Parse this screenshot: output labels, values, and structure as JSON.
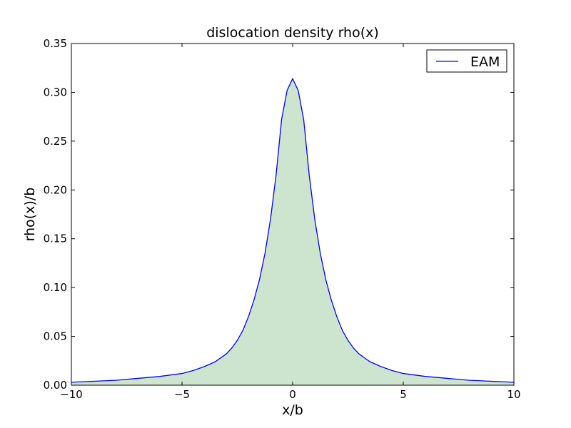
{
  "chart_data": {
    "type": "area",
    "title": "dislocation density rho(x)",
    "xlabel": "x/b",
    "ylabel": "rho(x)/b",
    "xlim": [
      -10,
      10
    ],
    "ylim": [
      0,
      0.35
    ],
    "xticks": [
      -10,
      -5,
      0,
      5,
      10
    ],
    "xtick_labels": [
      "−10",
      "−5",
      "0",
      "5",
      "10"
    ],
    "yticks": [
      0.0,
      0.05,
      0.1,
      0.15,
      0.2,
      0.25,
      0.3,
      0.35
    ],
    "ytick_labels": [
      "0.00",
      "0.05",
      "0.10",
      "0.15",
      "0.20",
      "0.25",
      "0.30",
      "0.35"
    ],
    "grid": false,
    "legend": {
      "position": "top-right",
      "entries": [
        "EAM"
      ]
    },
    "series": [
      {
        "name": "EAM",
        "line_color": "#0000ff",
        "fill_color": "#cde5cf",
        "x": [
          -10,
          -9,
          -8,
          -7,
          -6,
          -5,
          -4.5,
          -4,
          -3.5,
          -3,
          -2.75,
          -2.5,
          -2.25,
          -2,
          -1.75,
          -1.5,
          -1.25,
          -1,
          -0.75,
          -0.5,
          -0.25,
          0,
          0.25,
          0.5,
          0.75,
          1,
          1.25,
          1.5,
          1.75,
          2,
          2.25,
          2.5,
          2.75,
          3,
          3.5,
          4,
          4.5,
          5,
          6,
          7,
          8,
          9,
          10
        ],
        "y": [
          0.003,
          0.004,
          0.005,
          0.007,
          0.009,
          0.012,
          0.015,
          0.019,
          0.024,
          0.032,
          0.038,
          0.046,
          0.056,
          0.07,
          0.087,
          0.108,
          0.135,
          0.17,
          0.215,
          0.272,
          0.302,
          0.314,
          0.302,
          0.272,
          0.215,
          0.17,
          0.135,
          0.108,
          0.087,
          0.07,
          0.056,
          0.046,
          0.038,
          0.032,
          0.024,
          0.019,
          0.015,
          0.012,
          0.009,
          0.007,
          0.005,
          0.004,
          0.003
        ]
      }
    ]
  }
}
